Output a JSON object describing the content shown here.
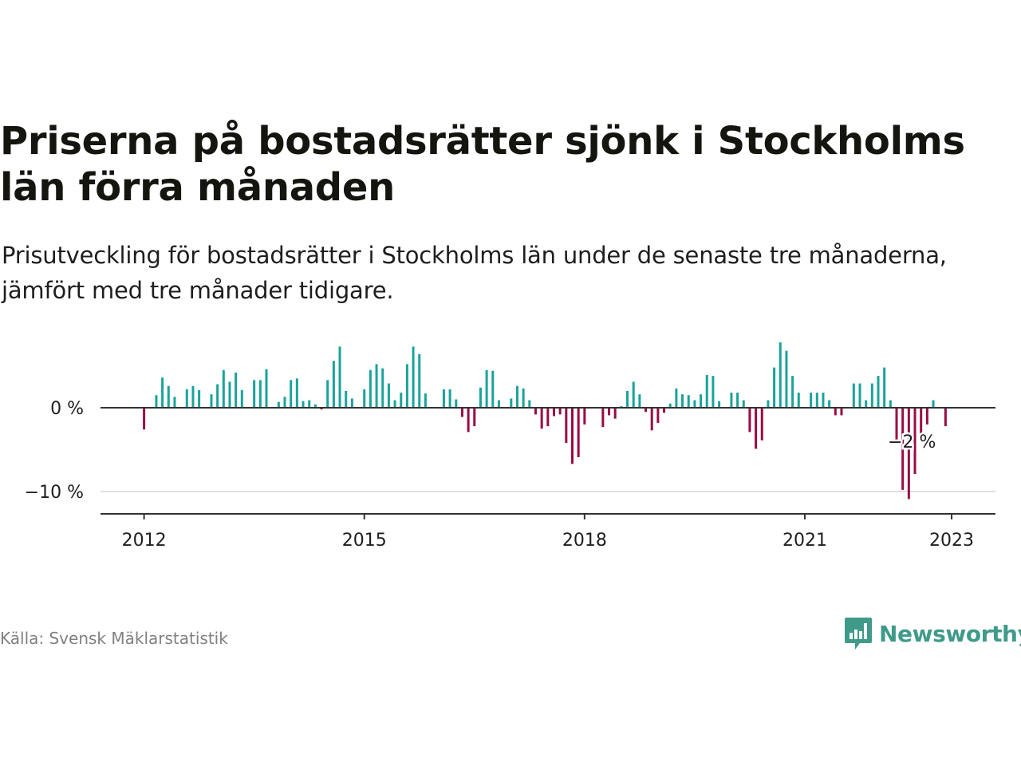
{
  "title": "Priserna på bostadsrätter sjönk i Stockholms län förra månaden",
  "subtitle": "Prisutveckling för bostadsrätter i Stockholms län under de senaste tre månaderna, jämfört med tre månader tidigare.",
  "source": "Källa: Svensk Mäklarstatistik",
  "brand": {
    "name": "Newsworthy",
    "icon": "newsworthy-logo-icon",
    "color": "#3f9a8a"
  },
  "colors": {
    "positive": "#1aa39a",
    "negative": "#990b44",
    "axis": "#333333",
    "grid": "#e0e0e0"
  },
  "chart_data": {
    "type": "bar",
    "title": "",
    "xlabel": "",
    "ylabel": "",
    "ylim": [
      -12.8,
      8.5
    ],
    "y_ticks": [
      {
        "value": 0,
        "label": "0 %"
      },
      {
        "value": -10,
        "label": "−10 %"
      }
    ],
    "x_ticks": [
      "2012",
      "2015",
      "2018",
      "2021",
      "2023"
    ],
    "annotation": {
      "label": "−2 %",
      "value": -2.2
    },
    "series": [
      {
        "values": [
          {
            "date": "2012-01",
            "value": -2.6
          },
          {
            "date": "2012-02",
            "value": -0.1
          },
          {
            "date": "2012-03",
            "value": 1.5
          },
          {
            "date": "2012-04",
            "value": 3.6
          },
          {
            "date": "2012-05",
            "value": 2.6
          },
          {
            "date": "2012-06",
            "value": 1.3
          },
          {
            "date": "2012-08",
            "value": 2.2
          },
          {
            "date": "2012-09",
            "value": 2.6
          },
          {
            "date": "2012-10",
            "value": 2.1
          },
          {
            "date": "2012-12",
            "value": 1.6
          },
          {
            "date": "2013-01",
            "value": 2.8
          },
          {
            "date": "2013-02",
            "value": 4.5
          },
          {
            "date": "2013-03",
            "value": 3.1
          },
          {
            "date": "2013-04",
            "value": 4.2
          },
          {
            "date": "2013-05",
            "value": 2.1
          },
          {
            "date": "2013-07",
            "value": 3.3
          },
          {
            "date": "2013-08",
            "value": 3.3
          },
          {
            "date": "2013-09",
            "value": 4.6
          },
          {
            "date": "2013-11",
            "value": 0.7
          },
          {
            "date": "2013-12",
            "value": 1.3
          },
          {
            "date": "2014-01",
            "value": 3.3
          },
          {
            "date": "2014-02",
            "value": 3.5
          },
          {
            "date": "2014-03",
            "value": 0.8
          },
          {
            "date": "2014-04",
            "value": 0.9
          },
          {
            "date": "2014-05",
            "value": 0.4
          },
          {
            "date": "2014-06",
            "value": -0.2
          },
          {
            "date": "2014-07",
            "value": 3.3
          },
          {
            "date": "2014-08",
            "value": 5.6
          },
          {
            "date": "2014-09",
            "value": 7.3
          },
          {
            "date": "2014-10",
            "value": 2.0
          },
          {
            "date": "2014-11",
            "value": 1.1
          },
          {
            "date": "2015-01",
            "value": 2.2
          },
          {
            "date": "2015-02",
            "value": 4.5
          },
          {
            "date": "2015-03",
            "value": 5.2
          },
          {
            "date": "2015-04",
            "value": 4.7
          },
          {
            "date": "2015-05",
            "value": 2.9
          },
          {
            "date": "2015-06",
            "value": 0.9
          },
          {
            "date": "2015-07",
            "value": 1.8
          },
          {
            "date": "2015-08",
            "value": 5.2
          },
          {
            "date": "2015-09",
            "value": 7.3
          },
          {
            "date": "2015-10",
            "value": 6.4
          },
          {
            "date": "2015-11",
            "value": 1.7
          },
          {
            "date": "2016-02",
            "value": 2.2
          },
          {
            "date": "2016-03",
            "value": 2.2
          },
          {
            "date": "2016-04",
            "value": 1.0
          },
          {
            "date": "2016-05",
            "value": -1.1
          },
          {
            "date": "2016-06",
            "value": -2.9
          },
          {
            "date": "2016-07",
            "value": -2.2
          },
          {
            "date": "2016-08",
            "value": 2.4
          },
          {
            "date": "2016-09",
            "value": 4.5
          },
          {
            "date": "2016-10",
            "value": 4.4
          },
          {
            "date": "2016-11",
            "value": 0.9
          },
          {
            "date": "2017-01",
            "value": 1.1
          },
          {
            "date": "2017-02",
            "value": 2.6
          },
          {
            "date": "2017-03",
            "value": 2.3
          },
          {
            "date": "2017-04",
            "value": 0.9
          },
          {
            "date": "2017-05",
            "value": -0.8
          },
          {
            "date": "2017-06",
            "value": -2.5
          },
          {
            "date": "2017-07",
            "value": -2.2
          },
          {
            "date": "2017-08",
            "value": -1.0
          },
          {
            "date": "2017-09",
            "value": -0.8
          },
          {
            "date": "2017-10",
            "value": -4.2
          },
          {
            "date": "2017-11",
            "value": -6.7
          },
          {
            "date": "2017-12",
            "value": -5.9
          },
          {
            "date": "2018-01",
            "value": -2.0
          },
          {
            "date": "2018-04",
            "value": -2.3
          },
          {
            "date": "2018-05",
            "value": -0.9
          },
          {
            "date": "2018-06",
            "value": -1.3
          },
          {
            "date": "2018-07",
            "value": 0.2
          },
          {
            "date": "2018-08",
            "value": 2.0
          },
          {
            "date": "2018-09",
            "value": 3.1
          },
          {
            "date": "2018-10",
            "value": 1.6
          },
          {
            "date": "2018-11",
            "value": -0.5
          },
          {
            "date": "2018-12",
            "value": -2.7
          },
          {
            "date": "2019-01",
            "value": -1.8
          },
          {
            "date": "2019-02",
            "value": -0.6
          },
          {
            "date": "2019-03",
            "value": 0.5
          },
          {
            "date": "2019-04",
            "value": 2.3
          },
          {
            "date": "2019-05",
            "value": 1.6
          },
          {
            "date": "2019-06",
            "value": 1.5
          },
          {
            "date": "2019-07",
            "value": 0.9
          },
          {
            "date": "2019-08",
            "value": 1.6
          },
          {
            "date": "2019-09",
            "value": 3.9
          },
          {
            "date": "2019-10",
            "value": 3.8
          },
          {
            "date": "2019-11",
            "value": 0.8
          },
          {
            "date": "2020-01",
            "value": 1.8
          },
          {
            "date": "2020-02",
            "value": 1.8
          },
          {
            "date": "2020-03",
            "value": 0.9
          },
          {
            "date": "2020-04",
            "value": -2.9
          },
          {
            "date": "2020-05",
            "value": -4.9
          },
          {
            "date": "2020-06",
            "value": -3.9
          },
          {
            "date": "2020-07",
            "value": 0.9
          },
          {
            "date": "2020-08",
            "value": 4.8
          },
          {
            "date": "2020-09",
            "value": 7.8
          },
          {
            "date": "2020-10",
            "value": 6.8
          },
          {
            "date": "2020-11",
            "value": 3.8
          },
          {
            "date": "2020-12",
            "value": 1.8
          },
          {
            "date": "2021-02",
            "value": 1.8
          },
          {
            "date": "2021-03",
            "value": 1.8
          },
          {
            "date": "2021-04",
            "value": 1.8
          },
          {
            "date": "2021-05",
            "value": 0.9
          },
          {
            "date": "2021-06",
            "value": -0.9
          },
          {
            "date": "2021-07",
            "value": -0.9
          },
          {
            "date": "2021-09",
            "value": 2.9
          },
          {
            "date": "2021-10",
            "value": 2.9
          },
          {
            "date": "2021-11",
            "value": 0.9
          },
          {
            "date": "2021-12",
            "value": 2.9
          },
          {
            "date": "2022-01",
            "value": 3.8
          },
          {
            "date": "2022-02",
            "value": 4.8
          },
          {
            "date": "2022-03",
            "value": 0.9
          },
          {
            "date": "2022-04",
            "value": -3.9
          },
          {
            "date": "2022-05",
            "value": -9.8
          },
          {
            "date": "2022-06",
            "value": -10.9
          },
          {
            "date": "2022-07",
            "value": -7.9
          },
          {
            "date": "2022-08",
            "value": -3.9
          },
          {
            "date": "2022-09",
            "value": -2.0
          },
          {
            "date": "2022-10",
            "value": 0.9
          },
          {
            "date": "2022-12",
            "value": -2.2
          }
        ]
      }
    ]
  }
}
